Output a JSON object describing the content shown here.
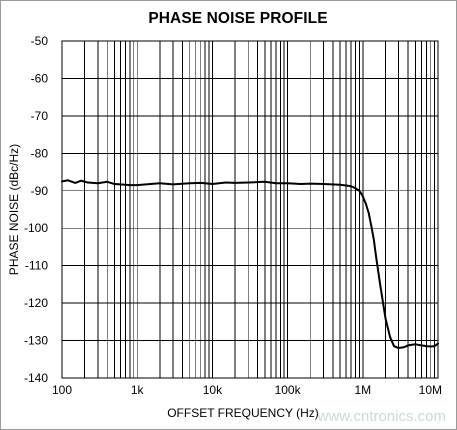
{
  "chart_data": {
    "type": "line",
    "title": "PHASE NOISE PROFILE",
    "xlabel": "OFFSET FREQUENCY (Hz)",
    "ylabel": "PHASE NOISE (dBc/Hz)",
    "x_scale": "log",
    "xlim": [
      100,
      10000000
    ],
    "ylim": [
      -140,
      -50
    ],
    "grid": true,
    "x_ticks": [
      100,
      1000,
      10000,
      100000,
      1000000,
      10000000
    ],
    "x_tick_labels": [
      "100",
      "1k",
      "10k",
      "100k",
      "1M",
      "10M"
    ],
    "y_ticks": [
      -50,
      -60,
      -70,
      -80,
      -90,
      -100,
      -110,
      -120,
      -130,
      -140
    ],
    "y_tick_labels": [
      "-50",
      "-60",
      "-70",
      "-80",
      "-90",
      "-100",
      "-110",
      "-120",
      "-130",
      "-140"
    ],
    "series": [
      {
        "x": [
          100,
          120,
          150,
          180,
          220,
          300,
          400,
          500,
          600,
          800,
          1000,
          1500,
          2000,
          3000,
          5000,
          7000,
          10000,
          15000,
          20000,
          30000,
          50000,
          70000,
          100000,
          150000,
          200000,
          300000,
          500000,
          600000,
          700000,
          800000,
          900000,
          1000000,
          1100000,
          1200000,
          1300000,
          1400000,
          1500000,
          1700000,
          2000000,
          2300000,
          2600000,
          3000000,
          3500000,
          4000000,
          5000000,
          6000000,
          7000000,
          8000000,
          9000000,
          10000000
        ],
        "y": [
          -87.5,
          -87.2,
          -87.9,
          -87.3,
          -87.8,
          -88.0,
          -87.6,
          -88.2,
          -88.3,
          -88.5,
          -88.5,
          -88.2,
          -88.0,
          -88.3,
          -88.0,
          -87.9,
          -88.2,
          -87.8,
          -87.9,
          -87.8,
          -87.6,
          -88.0,
          -88.0,
          -88.2,
          -88.1,
          -88.2,
          -88.4,
          -88.6,
          -88.8,
          -89.3,
          -90.0,
          -91.5,
          -93.5,
          -96.0,
          -99.5,
          -103.0,
          -107.5,
          -115.0,
          -124.0,
          -129.0,
          -131.5,
          -132.0,
          -131.8,
          -131.3,
          -131.0,
          -131.3,
          -131.5,
          -131.6,
          -131.5,
          -130.8
        ]
      }
    ]
  },
  "watermark": "www.cntronics.com"
}
